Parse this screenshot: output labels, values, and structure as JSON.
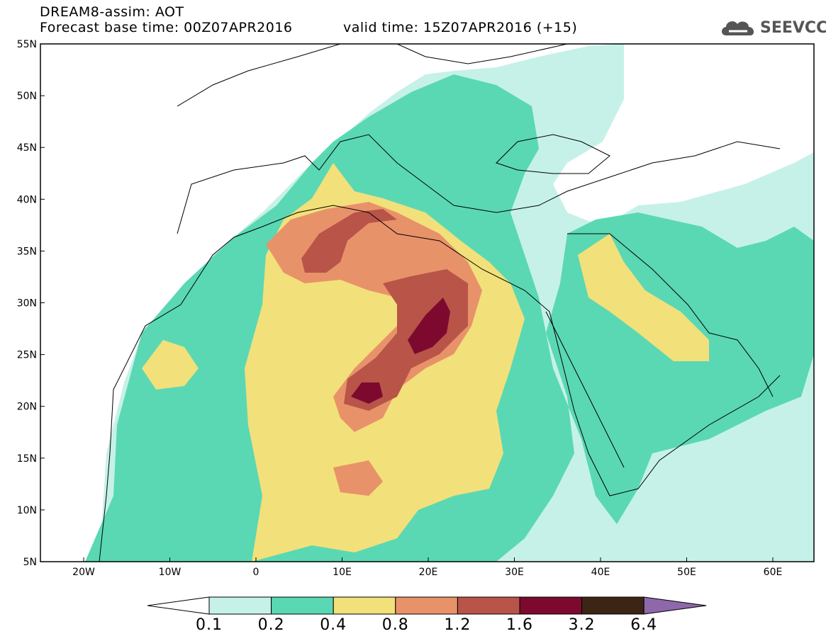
{
  "header": {
    "title": "DREAM8-assim: AOT",
    "base_time": "Forecast base time: 00Z07APR2016",
    "valid_time": "valid time: 15Z07APR2016 (+15)"
  },
  "logo": {
    "text": "SEEVCCC",
    "icon": "cloud-icon"
  },
  "axes": {
    "lat_labels": [
      "55N",
      "50N",
      "45N",
      "40N",
      "35N",
      "30N",
      "25N",
      "20N",
      "15N",
      "10N",
      "5N"
    ],
    "lon_labels": [
      "20W",
      "10W",
      "0",
      "10E",
      "20E",
      "30E",
      "40E",
      "50E",
      "60E"
    ]
  },
  "colorbar": {
    "labels": [
      "0.1",
      "0.2",
      "0.4",
      "0.8",
      "1.2",
      "1.6",
      "3.2",
      "6.4"
    ],
    "colors": [
      "#c6f1e8",
      "#5ad8b3",
      "#f2e07a",
      "#e8926a",
      "#b85448",
      "#7d0a2e",
      "#3d2516",
      "#8e68aa"
    ]
  },
  "palette": {
    "c1": "#c6f1e8",
    "c2": "#5ad8b3",
    "c3": "#f2e07a",
    "c4": "#e8926a",
    "c5": "#b85448",
    "c6": "#7d0a2e"
  }
}
